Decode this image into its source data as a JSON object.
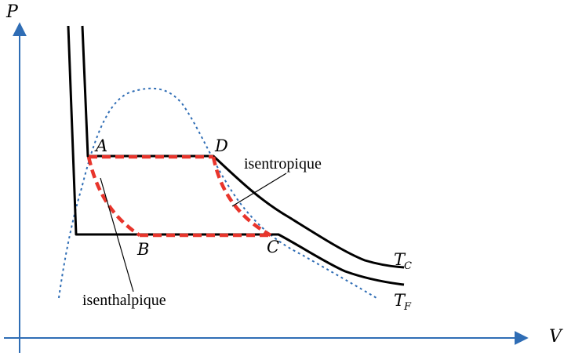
{
  "axes": {
    "y_label": "P",
    "x_label": "V",
    "color": "#2f6db5"
  },
  "points": {
    "a": "A",
    "b": "B",
    "c": "C",
    "d": "D"
  },
  "curves": {
    "tc_main": "T",
    "tc_sub": "C",
    "tf_main": "T",
    "tf_sub": "F",
    "isotherm_color": "#000000",
    "dome_color": "#2f6db5"
  },
  "annotations": {
    "isentropique": "isentropique",
    "isenthalpique": "isenthalpique"
  },
  "cycle": {
    "color": "#e8352c"
  }
}
